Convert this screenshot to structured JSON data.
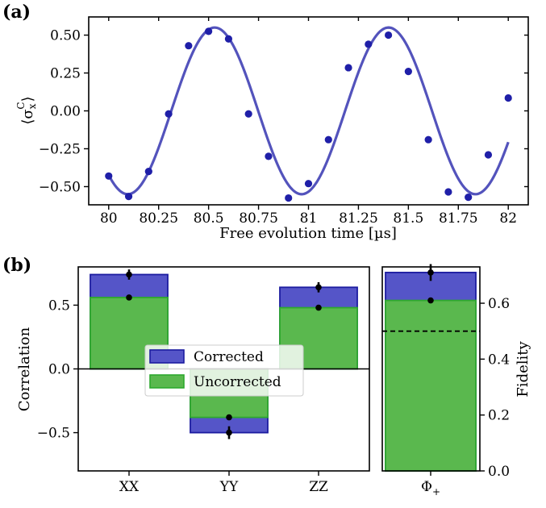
{
  "chart_data": [
    {
      "panel_label": "(a)",
      "type": "scatter",
      "xlabel": "Free evolution time [µs]",
      "ylabel": "⟨σₓᶜ⟩",
      "ylabel_parts": {
        "main": "⟨σ",
        "sub": "x",
        "sup": "C",
        "close": "⟩"
      },
      "xlim": [
        79.9,
        82.1
      ],
      "ylim": [
        -0.62,
        0.62
      ],
      "xticks": [
        80,
        80.25,
        80.5,
        80.75,
        81,
        81.25,
        81.5,
        81.75,
        82
      ],
      "xtick_labels": [
        "80",
        "80.25",
        "80.5",
        "80.75",
        "81",
        "81.25",
        "81.5",
        "81.75",
        "82"
      ],
      "yticks": [
        -0.5,
        -0.25,
        0,
        0.25,
        0.5
      ],
      "ytick_labels": [
        "−0.50",
        "−0.25",
        "0.00",
        "0.25",
        "0.50"
      ],
      "series": [
        {
          "name": "data",
          "kind": "points",
          "color": "#1f1fa8",
          "x": [
            80.0,
            80.1,
            80.2,
            80.3,
            80.4,
            80.5,
            80.6,
            80.7,
            80.8,
            80.9,
            81.0,
            81.1,
            81.2,
            81.3,
            81.4,
            81.5,
            81.6,
            81.7,
            81.8,
            81.9,
            82.0
          ],
          "y": [
            -0.43,
            -0.565,
            -0.4,
            -0.02,
            0.43,
            0.525,
            0.475,
            -0.02,
            -0.3,
            -0.575,
            -0.48,
            -0.19,
            0.285,
            0.44,
            0.5,
            0.26,
            -0.19,
            -0.535,
            -0.57,
            -0.29,
            0.085
          ]
        },
        {
          "name": "fit",
          "kind": "curve",
          "color": "#4a4ab8",
          "model": {
            "amplitude": 0.55,
            "period": 0.87,
            "phase": -0.36,
            "offset": 0.0
          },
          "x_range": [
            80.0,
            82.0
          ]
        }
      ]
    },
    {
      "panel_label": "(b)",
      "type": "bar",
      "categories": [
        "XX",
        "YY",
        "ZZ"
      ],
      "ylabel": "Correlation",
      "ylim": [
        -0.8,
        0.8
      ],
      "yticks": [
        -0.5,
        0,
        0.5
      ],
      "ytick_labels": [
        "−0.5",
        "0.0",
        "0.5"
      ],
      "series": [
        {
          "name": "Corrected",
          "values": [
            0.74,
            -0.5,
            0.64
          ],
          "errors": [
            0.04,
            0.05,
            0.04
          ],
          "fill": "#5555c8",
          "edge": "#1c1ca0"
        },
        {
          "name": "Uncorrected",
          "values": [
            0.56,
            -0.38,
            0.48
          ],
          "errors": [
            0.0,
            0.0,
            0.0
          ],
          "fill": "#5ab84e",
          "edge": "#2ea82e"
        }
      ],
      "legend": {
        "position": "center-left",
        "entries": [
          "Corrected",
          "Uncorrected"
        ]
      }
    },
    {
      "type": "bar",
      "categories": [
        "Φ₊"
      ],
      "category_parts": {
        "main": "Φ",
        "sub": "+"
      },
      "ylabel": "Fidelity",
      "ylim": [
        0,
        0.73
      ],
      "yticks": [
        0,
        0.2,
        0.4,
        0.6
      ],
      "ytick_labels": [
        "0.0",
        "0.2",
        "0.4",
        "0.6"
      ],
      "threshold_line": 0.5,
      "series": [
        {
          "name": "Corrected",
          "values": [
            0.71
          ],
          "errors": [
            0.03
          ],
          "fill": "#5555c8",
          "edge": "#1c1ca0"
        },
        {
          "name": "Uncorrected",
          "values": [
            0.61
          ],
          "errors": [
            0.0
          ],
          "fill": "#5ab84e",
          "edge": "#2ea82e"
        }
      ]
    }
  ]
}
